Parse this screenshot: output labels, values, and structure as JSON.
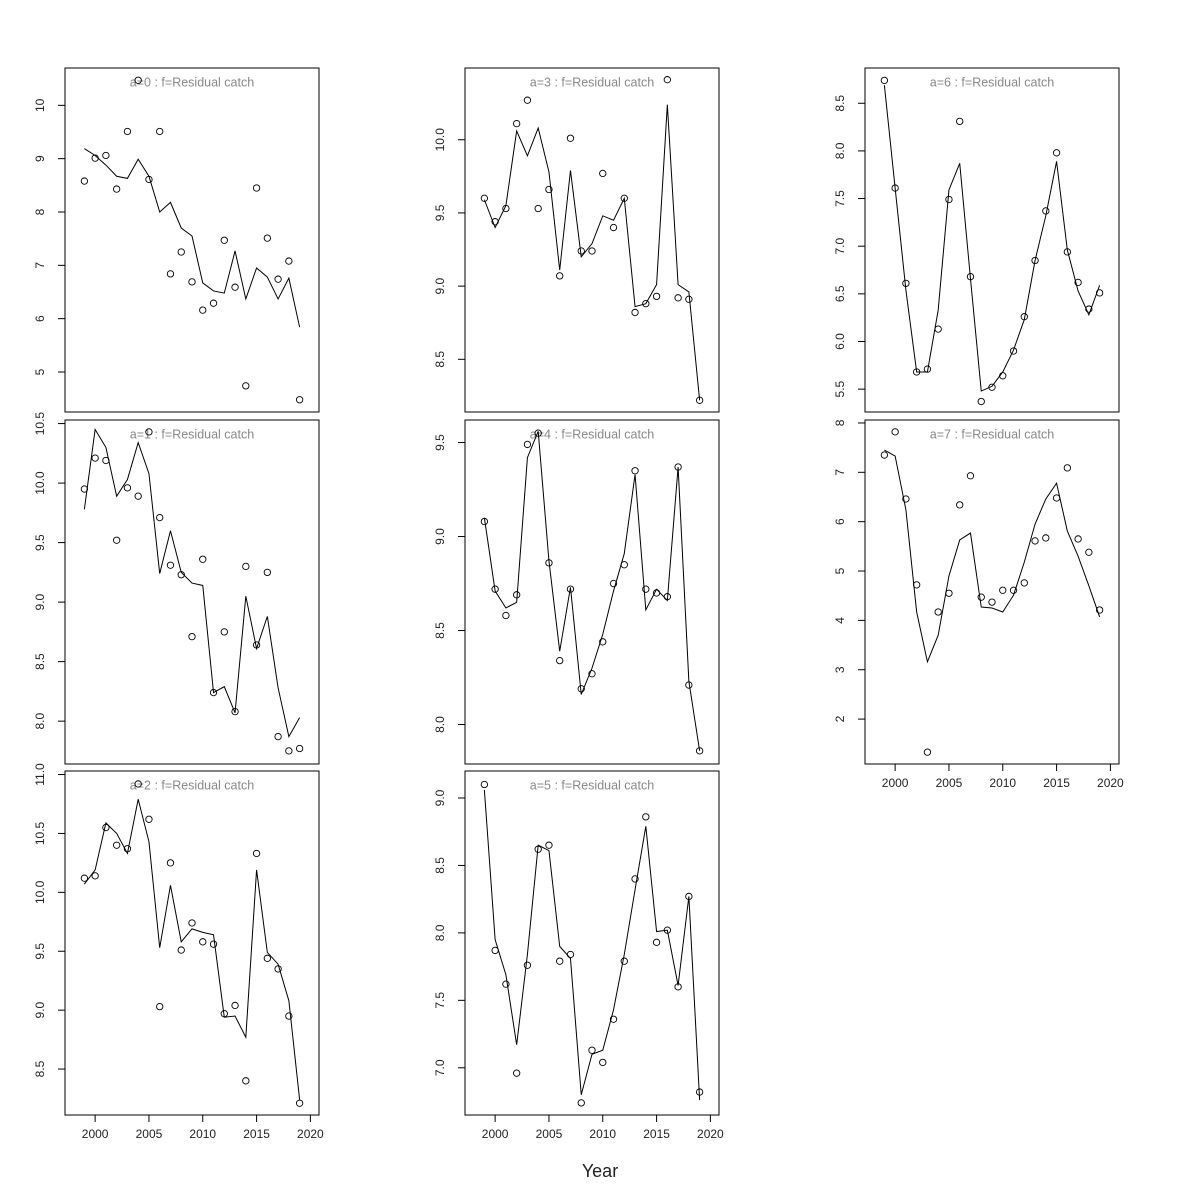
{
  "x_label": "Year",
  "chart_data": [
    {
      "type": "line",
      "title": "a=0  :  f=Residual catch",
      "x": [
        1999,
        2000,
        2001,
        2002,
        2003,
        2004,
        2005,
        2006,
        2007,
        2008,
        2009,
        2010,
        2011,
        2012,
        2013,
        2014,
        2015,
        2016,
        2017,
        2018,
        2019
      ],
      "xlim": [
        1997.2,
        2020.8
      ],
      "ylim": [
        4.25,
        10.7
      ],
      "yticks": [
        5,
        6,
        7,
        8,
        9,
        10
      ],
      "series": [
        {
          "mode": "markers",
          "color": "#000000",
          "values": [
            8.58,
            9.01,
            9.06,
            8.43,
            9.51,
            10.47,
            8.61,
            9.51,
            6.84,
            7.25,
            6.69,
            6.16,
            6.29,
            7.47,
            6.59,
            4.74,
            8.45,
            7.51,
            6.74,
            7.08,
            4.48
          ]
        },
        {
          "mode": "lines",
          "color": "#000000",
          "values": [
            9.19,
            9.06,
            8.88,
            8.67,
            8.63,
            8.99,
            8.67,
            8.0,
            8.18,
            7.7,
            7.55,
            6.67,
            6.52,
            6.48,
            7.27,
            6.37,
            6.95,
            6.78,
            6.37,
            6.76,
            5.84
          ]
        }
      ]
    },
    {
      "type": "line",
      "title": "a=1  :  f=Residual catch",
      "x": [
        1999,
        2000,
        2001,
        2002,
        2003,
        2004,
        2005,
        2006,
        2007,
        2008,
        2009,
        2010,
        2011,
        2012,
        2013,
        2014,
        2015,
        2016,
        2017,
        2018,
        2019
      ],
      "xlim": [
        1997.2,
        2020.8
      ],
      "ylim": [
        7.64,
        10.53
      ],
      "yticks": [
        {
          "value": 8,
          "label": "8.0"
        },
        8.5,
        {
          "value": 9,
          "label": "9.0"
        },
        9.5,
        {
          "value": 10,
          "label": "10.0"
        },
        10.5
      ],
      "series": [
        {
          "mode": "markers",
          "color": "#000000",
          "values": [
            9.95,
            10.21,
            10.19,
            9.52,
            9.96,
            9.89,
            10.43,
            9.71,
            9.31,
            9.23,
            8.71,
            9.36,
            8.24,
            8.75,
            8.08,
            9.3,
            8.64,
            9.25,
            7.87,
            7.75,
            7.77
          ]
        },
        {
          "mode": "lines",
          "color": "#000000",
          "values": [
            9.78,
            10.45,
            10.3,
            9.89,
            10.03,
            10.34,
            10.08,
            9.24,
            9.6,
            9.25,
            9.16,
            9.14,
            8.24,
            8.29,
            8.07,
            9.05,
            8.61,
            8.88,
            8.28,
            7.87,
            8.03
          ]
        }
      ]
    },
    {
      "type": "line",
      "title": "a=2  :  f=Residual catch",
      "x": [
        1999,
        2000,
        2001,
        2002,
        2003,
        2004,
        2005,
        2006,
        2007,
        2008,
        2009,
        2010,
        2011,
        2012,
        2013,
        2014,
        2015,
        2016,
        2017,
        2018,
        2019
      ],
      "xlim": [
        1997.2,
        2020.8
      ],
      "xticks": [
        2000,
        2005,
        2010,
        2015,
        2020
      ],
      "ylim": [
        8.11,
        11.03
      ],
      "yticks": [
        8.5,
        {
          "value": 9,
          "label": "9.0"
        },
        9.5,
        {
          "value": 10,
          "label": "10.0"
        },
        10.5,
        {
          "value": 11,
          "label": "11.0"
        }
      ],
      "series": [
        {
          "mode": "markers",
          "color": "#000000",
          "values": [
            10.12,
            10.14,
            10.55,
            10.4,
            10.37,
            10.92,
            10.62,
            9.03,
            10.25,
            9.51,
            9.74,
            9.58,
            9.56,
            8.97,
            9.04,
            8.4,
            10.33,
            9.44,
            9.35,
            8.95,
            8.21
          ]
        },
        {
          "mode": "lines",
          "color": "#000000",
          "values": [
            10.07,
            10.19,
            10.59,
            10.5,
            10.33,
            10.79,
            10.43,
            9.53,
            10.06,
            9.58,
            9.69,
            9.66,
            9.64,
            8.94,
            8.95,
            8.77,
            10.19,
            9.49,
            9.39,
            9.08,
            8.24
          ]
        }
      ]
    },
    {
      "type": "line",
      "title": "a=3  :  f=Residual catch",
      "x": [
        1999,
        2000,
        2001,
        2002,
        2003,
        2004,
        2005,
        2006,
        2007,
        2008,
        2009,
        2010,
        2011,
        2012,
        2013,
        2014,
        2015,
        2016,
        2017,
        2018,
        2019
      ],
      "xlim": [
        1997.2,
        2020.8
      ],
      "ylim": [
        8.14,
        10.49
      ],
      "yticks": [
        8.5,
        {
          "value": 9,
          "label": "9.0"
        },
        9.5,
        {
          "value": 10,
          "label": "10.0"
        }
      ],
      "series": [
        {
          "mode": "markers",
          "color": "#000000",
          "values": [
            9.6,
            9.44,
            9.53,
            10.11,
            10.27,
            9.53,
            9.66,
            9.07,
            10.01,
            9.24,
            9.24,
            9.77,
            9.4,
            9.6,
            8.82,
            8.88,
            8.93,
            10.41,
            8.92,
            8.91,
            8.22
          ]
        },
        {
          "mode": "lines",
          "color": "#000000",
          "values": [
            9.59,
            9.4,
            9.55,
            10.06,
            9.89,
            10.08,
            9.78,
            9.11,
            9.79,
            9.2,
            9.29,
            9.48,
            9.45,
            9.6,
            8.86,
            8.88,
            9.01,
            10.24,
            9.01,
            8.96,
            8.22
          ]
        }
      ]
    },
    {
      "type": "line",
      "title": "a=4  :  f=Residual catch",
      "x": [
        1999,
        2000,
        2001,
        2002,
        2003,
        2004,
        2005,
        2006,
        2007,
        2008,
        2009,
        2010,
        2011,
        2012,
        2013,
        2014,
        2015,
        2016,
        2017,
        2018,
        2019
      ],
      "xlim": [
        1997.2,
        2020.8
      ],
      "ylim": [
        7.79,
        9.62
      ],
      "yticks": [
        {
          "value": 8,
          "label": "8.0"
        },
        8.5,
        {
          "value": 9,
          "label": "9.0"
        },
        9.5
      ],
      "series": [
        {
          "mode": "markers",
          "color": "#000000",
          "values": [
            9.08,
            8.72,
            8.58,
            8.69,
            9.49,
            9.55,
            8.86,
            8.34,
            8.72,
            8.19,
            8.27,
            8.44,
            8.75,
            8.85,
            9.35,
            8.72,
            8.7,
            8.68,
            9.37,
            8.21,
            7.86
          ]
        },
        {
          "mode": "lines",
          "color": "#000000",
          "values": [
            9.1,
            8.71,
            8.62,
            8.65,
            9.42,
            9.56,
            8.87,
            8.39,
            8.73,
            8.16,
            8.3,
            8.48,
            8.71,
            8.91,
            9.33,
            8.61,
            8.72,
            8.66,
            9.37,
            8.23,
            7.86
          ]
        }
      ]
    },
    {
      "type": "line",
      "title": "a=5  :  f=Residual catch",
      "x": [
        1999,
        2000,
        2001,
        2002,
        2003,
        2004,
        2005,
        2006,
        2007,
        2008,
        2009,
        2010,
        2011,
        2012,
        2013,
        2014,
        2015,
        2016,
        2017,
        2018,
        2019
      ],
      "xlim": [
        1997.2,
        2020.8
      ],
      "xticks": [
        2000,
        2005,
        2010,
        2015,
        2020
      ],
      "ylim": [
        6.65,
        9.2
      ],
      "yticks": [
        {
          "value": 7,
          "label": "7.0"
        },
        7.5,
        {
          "value": 8,
          "label": "8.0"
        },
        8.5,
        {
          "value": 9,
          "label": "9.0"
        }
      ],
      "series": [
        {
          "mode": "markers",
          "color": "#000000",
          "values": [
            9.1,
            7.87,
            7.62,
            6.96,
            7.76,
            8.62,
            8.65,
            7.79,
            7.84,
            6.74,
            7.13,
            7.04,
            7.36,
            7.79,
            8.4,
            8.86,
            7.93,
            8.02,
            7.6,
            8.27,
            6.82
          ]
        },
        {
          "mode": "lines",
          "color": "#000000",
          "values": [
            9.06,
            7.95,
            7.69,
            7.17,
            7.84,
            8.65,
            8.61,
            7.9,
            7.81,
            6.8,
            7.1,
            7.13,
            7.43,
            7.84,
            8.32,
            8.79,
            8.01,
            8.02,
            7.61,
            8.27,
            6.76
          ]
        }
      ]
    },
    {
      "type": "line",
      "title": "a=6  :  f=Residual catch",
      "x": [
        1999,
        2000,
        2001,
        2002,
        2003,
        2004,
        2005,
        2006,
        2007,
        2008,
        2009,
        2010,
        2011,
        2012,
        2013,
        2014,
        2015,
        2016,
        2017,
        2018,
        2019
      ],
      "xlim": [
        1997.2,
        2020.8
      ],
      "ylim": [
        5.26,
        8.87
      ],
      "yticks": [
        5.5,
        {
          "value": 6,
          "label": "6.0"
        },
        6.5,
        {
          "value": 7,
          "label": "7.0"
        },
        7.5,
        {
          "value": 8,
          "label": "8.0"
        },
        8.5
      ],
      "series": [
        {
          "mode": "markers",
          "color": "#000000",
          "values": [
            8.74,
            7.61,
            6.61,
            5.68,
            5.71,
            6.13,
            7.49,
            8.31,
            6.68,
            5.37,
            5.52,
            5.64,
            5.9,
            6.26,
            6.85,
            7.37,
            7.98,
            6.94,
            6.62,
            6.34,
            6.51
          ]
        },
        {
          "mode": "lines",
          "color": "#000000",
          "values": [
            8.69,
            7.61,
            6.54,
            5.68,
            5.68,
            6.33,
            7.59,
            7.87,
            6.66,
            5.48,
            5.53,
            5.68,
            5.91,
            6.23,
            6.85,
            7.32,
            7.89,
            6.96,
            6.53,
            6.28,
            6.59
          ]
        }
      ]
    },
    {
      "type": "line",
      "title": "a=7  :  f=Residual catch",
      "x": [
        1999,
        2000,
        2001,
        2002,
        2003,
        2004,
        2005,
        2006,
        2007,
        2008,
        2009,
        2010,
        2011,
        2012,
        2013,
        2014,
        2015,
        2016,
        2017,
        2018,
        2019
      ],
      "xlim": [
        1997.2,
        2020.8
      ],
      "xticks": [
        2000,
        2005,
        2010,
        2015,
        2020
      ],
      "ylim": [
        1.09,
        8.06
      ],
      "yticks": [
        2,
        3,
        4,
        5,
        6,
        7,
        8
      ],
      "series": [
        {
          "mode": "markers",
          "color": "#000000",
          "values": [
            7.35,
            7.82,
            6.46,
            4.72,
            1.33,
            4.17,
            4.55,
            6.34,
            6.93,
            4.47,
            4.37,
            4.61,
            4.61,
            4.76,
            5.61,
            5.67,
            6.48,
            7.09,
            5.65,
            5.38,
            4.21
          ]
        },
        {
          "mode": "lines",
          "color": "#000000",
          "values": [
            7.45,
            7.33,
            6.24,
            4.17,
            3.16,
            3.7,
            4.9,
            5.63,
            5.77,
            4.27,
            4.25,
            4.17,
            4.51,
            5.18,
            5.95,
            6.46,
            6.78,
            5.81,
            5.3,
            4.7,
            4.07
          ]
        }
      ]
    }
  ]
}
